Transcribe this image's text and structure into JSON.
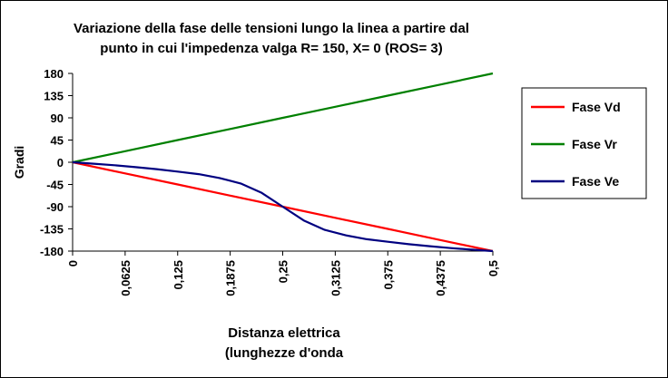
{
  "chart_data": {
    "type": "line",
    "title": "Variazione della fase delle tensioni lungo la linea a partire dal",
    "subtitle": "punto in cui l'impedenza valga R= 150, X= 0 (ROS= 3)",
    "xlabel": "Distanza elettrica",
    "xlabel_line2": "(lunghezze d'onda",
    "ylabel": "Gradi",
    "xlim": [
      0,
      0.5
    ],
    "ylim": [
      -180,
      180
    ],
    "xticks": [
      "0",
      "0,0625",
      "0,125",
      "0,1875",
      "0,25",
      "0,3125",
      "0,375",
      "0,4375",
      "0,5"
    ],
    "xtick_values": [
      0,
      0.0625,
      0.125,
      0.1875,
      0.25,
      0.3125,
      0.375,
      0.4375,
      0.5
    ],
    "yticks": [
      "180",
      "135",
      "90",
      "45",
      "0",
      "-45",
      "-90",
      "-135",
      "-180"
    ],
    "ytick_values": [
      180,
      135,
      90,
      45,
      0,
      -45,
      -90,
      -135,
      -180
    ],
    "grid": false,
    "legend_position": "right",
    "series": [
      {
        "name": "Fase Vd",
        "color": "#ff0000",
        "x": [
          0,
          0.0625,
          0.125,
          0.1875,
          0.25,
          0.3125,
          0.375,
          0.4375,
          0.5
        ],
        "y": [
          0,
          -22.5,
          -45,
          -67.5,
          -90,
          -112.5,
          -135,
          -157.5,
          -180
        ]
      },
      {
        "name": "Fase Vr",
        "color": "#008000",
        "x": [
          0,
          0.0625,
          0.125,
          0.1875,
          0.25,
          0.3125,
          0.375,
          0.4375,
          0.5
        ],
        "y": [
          0,
          22.5,
          45,
          67.5,
          90,
          112.5,
          135,
          157.5,
          180
        ]
      },
      {
        "name": "Fase Ve",
        "color": "#000080",
        "x": [
          0,
          0.025,
          0.05,
          0.075,
          0.1,
          0.125,
          0.15,
          0.175,
          0.2,
          0.225,
          0.25,
          0.275,
          0.3,
          0.325,
          0.35,
          0.375,
          0.4,
          0.425,
          0.45,
          0.475,
          0.5
        ],
        "y": [
          0,
          -3,
          -6,
          -10,
          -14,
          -19,
          -24,
          -32,
          -43,
          -62,
          -90,
          -118,
          -137,
          -148,
          -156,
          -161,
          -166,
          -170,
          -174,
          -177,
          -180
        ]
      }
    ]
  }
}
